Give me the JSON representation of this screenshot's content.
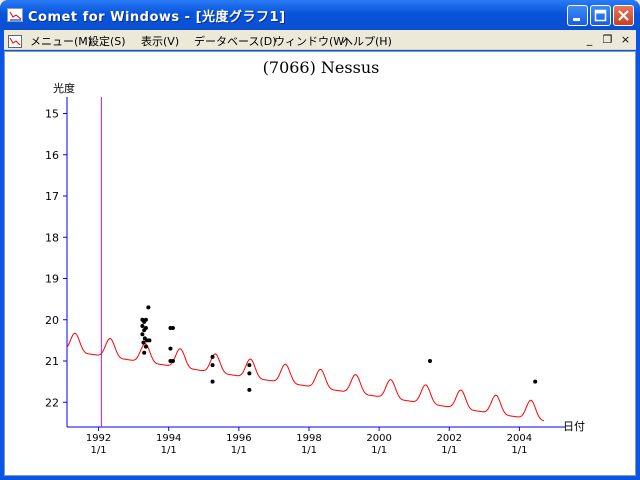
{
  "window": {
    "title": "Comet for Windows - [光度グラフ1]",
    "icon": "chart-window-icon",
    "controls": {
      "minimize": "minimize-icon",
      "maximize": "maximize-icon",
      "close": "close-icon"
    }
  },
  "menubar": {
    "items": [
      "メニュー(M)",
      "設定(S)",
      "表示(V)",
      "データベース(D)",
      "ウィンドウ(W)",
      "ヘルプ(H)"
    ],
    "mdi": {
      "minimize": "_",
      "restore": "❐",
      "close": "×"
    }
  },
  "chart_data": {
    "type": "scatter",
    "title": "(7066) Nessus",
    "ylabel": "光度",
    "xlabel": "日付",
    "ylim": [
      22.6,
      14.6
    ],
    "y_inverted": true,
    "yticks": [
      15,
      16,
      17,
      18,
      19,
      20,
      21,
      22
    ],
    "xlim": [
      1991.1,
      2005.3
    ],
    "xticks": [
      {
        "year": 1992,
        "label": "1992",
        "sub": "1/1"
      },
      {
        "year": 1994,
        "label": "1994",
        "sub": "1/1"
      },
      {
        "year": 1996,
        "label": "1996",
        "sub": "1/1"
      },
      {
        "year": 1998,
        "label": "1998",
        "sub": "1/1"
      },
      {
        "year": 2000,
        "label": "2000",
        "sub": "1/1"
      },
      {
        "year": 2002,
        "label": "2002",
        "sub": "1/1"
      },
      {
        "year": 2004,
        "label": "2004",
        "sub": "1/1"
      }
    ],
    "today_line_year": 1992.08,
    "today_line_color": "#a020f0",
    "prediction_color": "#ff0000",
    "observation_color": "#000000",
    "axis_color": "#0000ff",
    "observations": [
      {
        "x": 1993.25,
        "y": 20.0
      },
      {
        "x": 1993.3,
        "y": 20.05
      },
      {
        "x": 1993.35,
        "y": 20.0
      },
      {
        "x": 1993.25,
        "y": 20.15
      },
      {
        "x": 1993.3,
        "y": 20.25
      },
      {
        "x": 1993.35,
        "y": 20.2
      },
      {
        "x": 1993.25,
        "y": 20.35
      },
      {
        "x": 1993.32,
        "y": 20.45
      },
      {
        "x": 1993.38,
        "y": 20.5
      },
      {
        "x": 1993.28,
        "y": 20.55
      },
      {
        "x": 1993.35,
        "y": 20.65
      },
      {
        "x": 1993.3,
        "y": 20.8
      },
      {
        "x": 1993.42,
        "y": 19.7
      },
      {
        "x": 1993.45,
        "y": 20.5
      },
      {
        "x": 1994.05,
        "y": 20.2
      },
      {
        "x": 1994.12,
        "y": 20.2
      },
      {
        "x": 1994.05,
        "y": 20.7
      },
      {
        "x": 1994.05,
        "y": 21.0
      },
      {
        "x": 1994.12,
        "y": 21.0
      },
      {
        "x": 1995.25,
        "y": 20.9
      },
      {
        "x": 1995.25,
        "y": 21.1
      },
      {
        "x": 1995.25,
        "y": 21.5
      },
      {
        "x": 1996.3,
        "y": 21.1
      },
      {
        "x": 1996.3,
        "y": 21.3
      },
      {
        "x": 1996.3,
        "y": 21.7
      },
      {
        "x": 2001.45,
        "y": 21.0
      },
      {
        "x": 2004.45,
        "y": 21.5
      }
    ]
  }
}
